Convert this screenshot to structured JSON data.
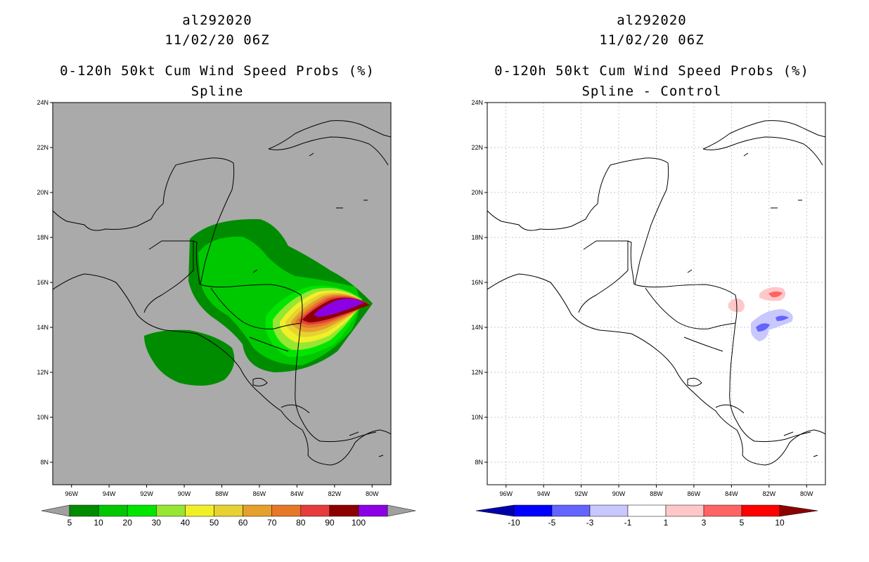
{
  "panels": [
    {
      "storm_id": "al292020",
      "datetime": "11/02/20 06Z",
      "title": "0-120h 50kt Cum Wind Speed Probs (%)",
      "subtitle": "Spline",
      "colorbar": {
        "labels": [
          "5",
          "10",
          "20",
          "30",
          "40",
          "50",
          "60",
          "70",
          "80",
          "90",
          "100"
        ],
        "colors": [
          "#008c00",
          "#00c800",
          "#00e600",
          "#96e632",
          "#f0f028",
          "#e6d232",
          "#e6a02d",
          "#e67828",
          "#e63c3c",
          "#8c0000",
          "#8c00e6"
        ],
        "extend_color": "#a0a0a0"
      }
    },
    {
      "storm_id": "al292020",
      "datetime": "11/02/20 06Z",
      "title": "0-120h 50kt Cum Wind Speed Probs (%)",
      "subtitle": "Spline - Control",
      "colorbar": {
        "labels": [
          "-10",
          "-5",
          "-3",
          "-1",
          "1",
          "3",
          "5",
          "10"
        ],
        "colors": [
          "#0000aa",
          "#0000ff",
          "#6464ff",
          "#c8c8ff",
          "#ffffff",
          "#ffc8c8",
          "#ff6464",
          "#ff0000",
          "#8c0000"
        ]
      }
    }
  ],
  "lat_labels": [
    "24N",
    "22N",
    "20N",
    "18N",
    "16N",
    "14N",
    "12N",
    "10N",
    "8N"
  ],
  "lon_labels": [
    "96W",
    "94W",
    "92W",
    "90W",
    "88W",
    "86W",
    "84W",
    "82W",
    "80W"
  ],
  "colors": {
    "ocean_left": "#aaaaaa",
    "ocean_right": "#ffffff",
    "grid": "#c8c8c8",
    "coast": "#000000"
  }
}
